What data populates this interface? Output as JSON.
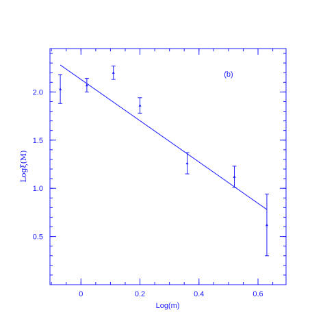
{
  "colors": {
    "primary": "#1a1aff",
    "background": "#ffffff"
  },
  "chart_data": {
    "type": "scatter",
    "panel_label": "(b)",
    "xlabel": "Log(m)",
    "ylabel": "Logξ(M)",
    "xlim": [
      -0.105,
      0.695
    ],
    "ylim": [
      0.0,
      2.45
    ],
    "x_ticks": [
      0,
      0.2,
      0.4,
      0.6
    ],
    "x_tick_labels": [
      "0",
      "0.2",
      "0.4",
      "0.6"
    ],
    "x_minor_step": 0.05,
    "y_ticks": [
      0.5,
      1.0,
      1.5,
      2.0
    ],
    "y_tick_labels": [
      "0.5",
      "1.0",
      "1.5",
      "2.0"
    ],
    "y_minor_step": 0.1,
    "grid": false,
    "series": [
      {
        "x": [
          -0.07,
          0.02,
          0.11,
          0.2,
          0.36,
          0.52,
          0.63
        ],
        "y": [
          2.03,
          2.07,
          2.2,
          1.86,
          1.26,
          1.12,
          0.62
        ],
        "y_err": [
          0.15,
          0.07,
          0.07,
          0.08,
          0.11,
          0.11,
          0.32
        ]
      }
    ],
    "fit_line": {
      "x": [
        -0.07,
        0.63
      ],
      "y": [
        2.28,
        0.78
      ]
    }
  }
}
